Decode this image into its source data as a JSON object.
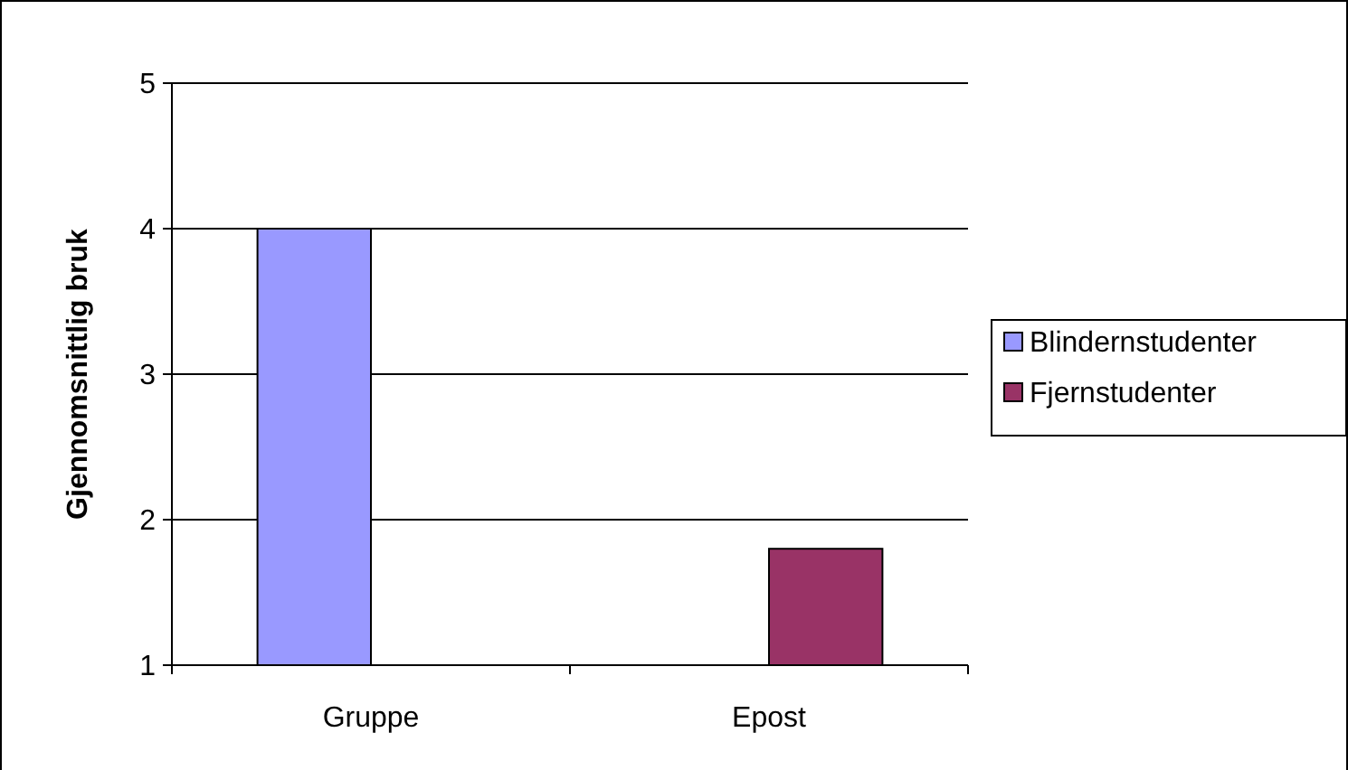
{
  "chart_data": {
    "type": "bar",
    "ylabel": "Gjennomsnittlig bruk",
    "categories": [
      "Gruppe",
      "Epost"
    ],
    "series": [
      {
        "name": "Blindernstudenter",
        "color": "#9999ff",
        "values": [
          4,
          null
        ]
      },
      {
        "name": "Fjernstudenter",
        "color": "#993366",
        "values": [
          null,
          1.8
        ]
      }
    ],
    "ylim": [
      1,
      5
    ],
    "yticks": [
      1,
      2,
      3,
      4,
      5
    ],
    "grid": "y",
    "legend": "right"
  }
}
